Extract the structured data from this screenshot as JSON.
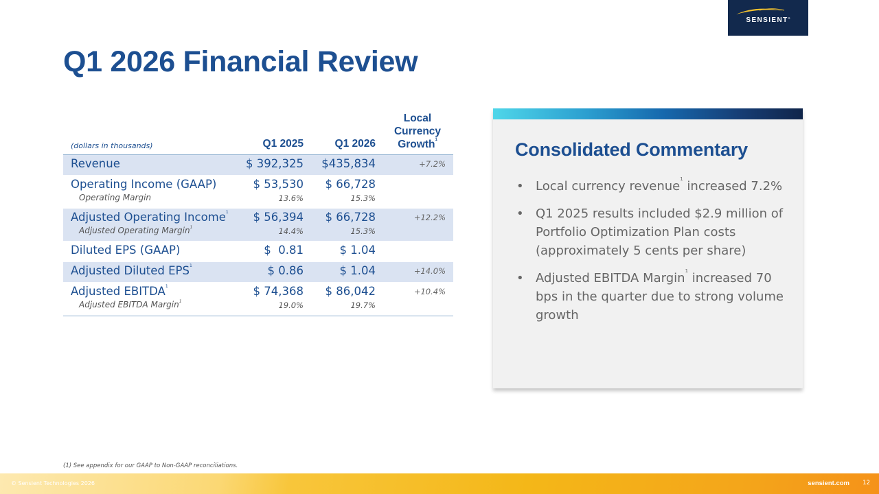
{
  "brand": {
    "name": "SENSIENT",
    "trademark": "®"
  },
  "title": "Q1 2026 Financial Review",
  "table": {
    "unit_note": "(dollars in thousands)",
    "headers": {
      "col1": "Q1 2025",
      "col2": "Q1 2026",
      "col3": "Local Currency Growth",
      "col3_note": "1"
    },
    "rows": [
      {
        "label": "Revenue",
        "note": "",
        "v1": "$ 392,325",
        "v2": "$435,834",
        "growth": "+7.2%",
        "sub_label": "",
        "sub_note": "",
        "sub_v1": "",
        "sub_v2": ""
      },
      {
        "label": "Operating Income (GAAP)",
        "note": "",
        "v1": "$ 53,530",
        "v2": "$ 66,728",
        "growth": "",
        "sub_label": "Operating Margin",
        "sub_note": "",
        "sub_v1": "13.6%",
        "sub_v2": "15.3%"
      },
      {
        "label": "Adjusted Operating Income",
        "note": "1",
        "v1": "$ 56,394",
        "v2": "$ 66,728",
        "growth": "+12.2%",
        "sub_label": "Adjusted Operating Margin",
        "sub_note": "1",
        "sub_v1": "14.4%",
        "sub_v2": "15.3%"
      },
      {
        "label": "Diluted EPS (GAAP)",
        "note": "",
        "v1": "$  0.81",
        "v2": "$ 1.04",
        "growth": "",
        "sub_label": "",
        "sub_note": "",
        "sub_v1": "",
        "sub_v2": ""
      },
      {
        "label": "Adjusted Diluted EPS",
        "note": "1",
        "v1": "$ 0.86",
        "v2": "$ 1.04",
        "growth": "+14.0%",
        "sub_label": "",
        "sub_note": "",
        "sub_v1": "",
        "sub_v2": ""
      },
      {
        "label": "Adjusted EBITDA",
        "note": "1",
        "v1": "$ 74,368",
        "v2": "$ 86,042",
        "growth": "+10.4%",
        "sub_label": "Adjusted EBITDA Margin",
        "sub_note": "1",
        "sub_v1": "19.0%",
        "sub_v2": "19.7%"
      }
    ]
  },
  "commentary": {
    "title": "Consolidated Commentary",
    "bullet_char": "•",
    "bullets": [
      {
        "pre": "Local currency revenue",
        "note": "1",
        "post": " increased 7.2%"
      },
      {
        "pre": "Q1 2025 results included $2.9 million of Portfolio Optimization Plan costs (approximately 5 cents per share)",
        "note": "",
        "post": ""
      },
      {
        "pre": "Adjusted EBITDA Margin",
        "note": "1",
        "post": " increased 70 bps in the quarter due to strong volume growth"
      }
    ]
  },
  "footnote": "(1) See appendix for our GAAP to Non-GAAP reconciliations.",
  "footer": {
    "copyright": "© Sensient Technologies 2026",
    "website": "sensient.com",
    "page_number": "12"
  },
  "colors": {
    "primary_blue": "#1d4f91",
    "navy": "#12294d",
    "row_shade": "#dae3f2",
    "panel_bg": "#f1f1f1",
    "footer_gold": "#f4b718"
  }
}
